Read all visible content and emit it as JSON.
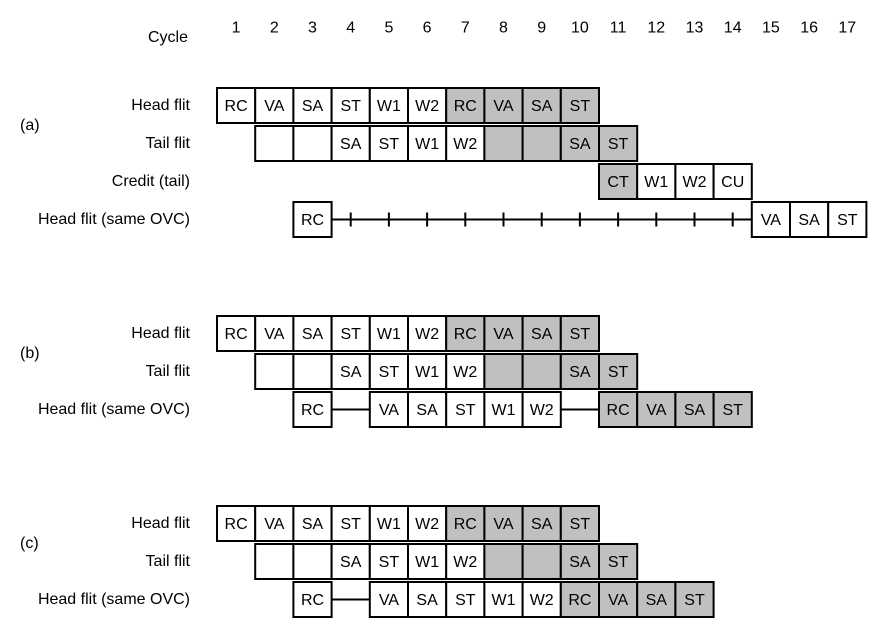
{
  "cycle_label": "Cycle",
  "cycles": [
    "1",
    "2",
    "3",
    "4",
    "5",
    "6",
    "7",
    "8",
    "9",
    "10",
    "11",
    "12",
    "13",
    "14",
    "15",
    "16",
    "17"
  ],
  "colors": {
    "shaded": "#c0c0c0",
    "plain": "#ffffff",
    "line": "#000000"
  },
  "panels": [
    {
      "label": "(a)",
      "rows": [
        {
          "label": "Head flit",
          "cells": [
            {
              "c": 1,
              "t": "RC"
            },
            {
              "c": 2,
              "t": "VA"
            },
            {
              "c": 3,
              "t": "SA"
            },
            {
              "c": 4,
              "t": "ST"
            },
            {
              "c": 5,
              "t": "W1"
            },
            {
              "c": 6,
              "t": "W2"
            },
            {
              "c": 7,
              "t": "RC",
              "s": true
            },
            {
              "c": 8,
              "t": "VA",
              "s": true
            },
            {
              "c": 9,
              "t": "SA",
              "s": true
            },
            {
              "c": 10,
              "t": "ST",
              "s": true
            }
          ]
        },
        {
          "label": "Tail flit",
          "cells": [
            {
              "c": 2,
              "t": ""
            },
            {
              "c": 3,
              "t": ""
            },
            {
              "c": 4,
              "t": "SA"
            },
            {
              "c": 5,
              "t": "ST"
            },
            {
              "c": 6,
              "t": "W1"
            },
            {
              "c": 7,
              "t": "W2"
            },
            {
              "c": 8,
              "t": "",
              "s": true
            },
            {
              "c": 9,
              "t": "",
              "s": true
            },
            {
              "c": 10,
              "t": "SA",
              "s": true
            },
            {
              "c": 11,
              "t": "ST",
              "s": true
            }
          ]
        },
        {
          "label": "Credit (tail)",
          "cells": [
            {
              "c": 11,
              "t": "CT",
              "s": true
            },
            {
              "c": 12,
              "t": "W1"
            },
            {
              "c": 13,
              "t": "W2"
            },
            {
              "c": 14,
              "t": "CU"
            }
          ]
        },
        {
          "label": "Head flit (same OVC)",
          "cells": [
            {
              "c": 3,
              "t": "RC"
            },
            {
              "c": 15,
              "t": "VA"
            },
            {
              "c": 16,
              "t": "SA"
            },
            {
              "c": 17,
              "t": "ST"
            }
          ],
          "wires": [
            {
              "from": 3,
              "to": 15,
              "ticks": true
            }
          ]
        }
      ]
    },
    {
      "label": "(b)",
      "rows": [
        {
          "label": "Head flit",
          "cells": [
            {
              "c": 1,
              "t": "RC"
            },
            {
              "c": 2,
              "t": "VA"
            },
            {
              "c": 3,
              "t": "SA"
            },
            {
              "c": 4,
              "t": "ST"
            },
            {
              "c": 5,
              "t": "W1"
            },
            {
              "c": 6,
              "t": "W2"
            },
            {
              "c": 7,
              "t": "RC",
              "s": true
            },
            {
              "c": 8,
              "t": "VA",
              "s": true
            },
            {
              "c": 9,
              "t": "SA",
              "s": true
            },
            {
              "c": 10,
              "t": "ST",
              "s": true
            }
          ]
        },
        {
          "label": "Tail flit",
          "cells": [
            {
              "c": 2,
              "t": ""
            },
            {
              "c": 3,
              "t": ""
            },
            {
              "c": 4,
              "t": "SA"
            },
            {
              "c": 5,
              "t": "ST"
            },
            {
              "c": 6,
              "t": "W1"
            },
            {
              "c": 7,
              "t": "W2"
            },
            {
              "c": 8,
              "t": "",
              "s": true
            },
            {
              "c": 9,
              "t": "",
              "s": true
            },
            {
              "c": 10,
              "t": "SA",
              "s": true
            },
            {
              "c": 11,
              "t": "ST",
              "s": true
            }
          ]
        },
        {
          "label": "Head flit (same OVC)",
          "cells": [
            {
              "c": 3,
              "t": "RC"
            },
            {
              "c": 5,
              "t": "VA"
            },
            {
              "c": 6,
              "t": "SA"
            },
            {
              "c": 7,
              "t": "ST"
            },
            {
              "c": 8,
              "t": "W1"
            },
            {
              "c": 9,
              "t": "W2"
            },
            {
              "c": 11,
              "t": "RC",
              "s": true
            },
            {
              "c": 12,
              "t": "VA",
              "s": true
            },
            {
              "c": 13,
              "t": "SA",
              "s": true
            },
            {
              "c": 14,
              "t": "ST",
              "s": true
            }
          ],
          "wires": [
            {
              "from": 3,
              "to": 5,
              "ticks": false
            },
            {
              "from": 9,
              "to": 11,
              "ticks": false
            }
          ]
        }
      ]
    },
    {
      "label": "(c)",
      "rows": [
        {
          "label": "Head flit",
          "cells": [
            {
              "c": 1,
              "t": "RC"
            },
            {
              "c": 2,
              "t": "VA"
            },
            {
              "c": 3,
              "t": "SA"
            },
            {
              "c": 4,
              "t": "ST"
            },
            {
              "c": 5,
              "t": "W1"
            },
            {
              "c": 6,
              "t": "W2"
            },
            {
              "c": 7,
              "t": "RC",
              "s": true
            },
            {
              "c": 8,
              "t": "VA",
              "s": true
            },
            {
              "c": 9,
              "t": "SA",
              "s": true
            },
            {
              "c": 10,
              "t": "ST",
              "s": true
            }
          ]
        },
        {
          "label": "Tail flit",
          "cells": [
            {
              "c": 2,
              "t": ""
            },
            {
              "c": 3,
              "t": ""
            },
            {
              "c": 4,
              "t": "SA"
            },
            {
              "c": 5,
              "t": "ST"
            },
            {
              "c": 6,
              "t": "W1"
            },
            {
              "c": 7,
              "t": "W2"
            },
            {
              "c": 8,
              "t": "",
              "s": true
            },
            {
              "c": 9,
              "t": "",
              "s": true
            },
            {
              "c": 10,
              "t": "SA",
              "s": true
            },
            {
              "c": 11,
              "t": "ST",
              "s": true
            }
          ]
        },
        {
          "label": "Head flit (same OVC)",
          "cells": [
            {
              "c": 3,
              "t": "RC"
            },
            {
              "c": 5,
              "t": "VA"
            },
            {
              "c": 6,
              "t": "SA"
            },
            {
              "c": 7,
              "t": "ST"
            },
            {
              "c": 8,
              "t": "W1"
            },
            {
              "c": 9,
              "t": "W2"
            },
            {
              "c": 10,
              "t": "RC",
              "s": true
            },
            {
              "c": 11,
              "t": "VA",
              "s": true
            },
            {
              "c": 12,
              "t": "SA",
              "s": true
            },
            {
              "c": 13,
              "t": "ST",
              "s": true
            }
          ],
          "wires": [
            {
              "from": 3,
              "to": 5,
              "ticks": false
            }
          ]
        }
      ]
    }
  ]
}
